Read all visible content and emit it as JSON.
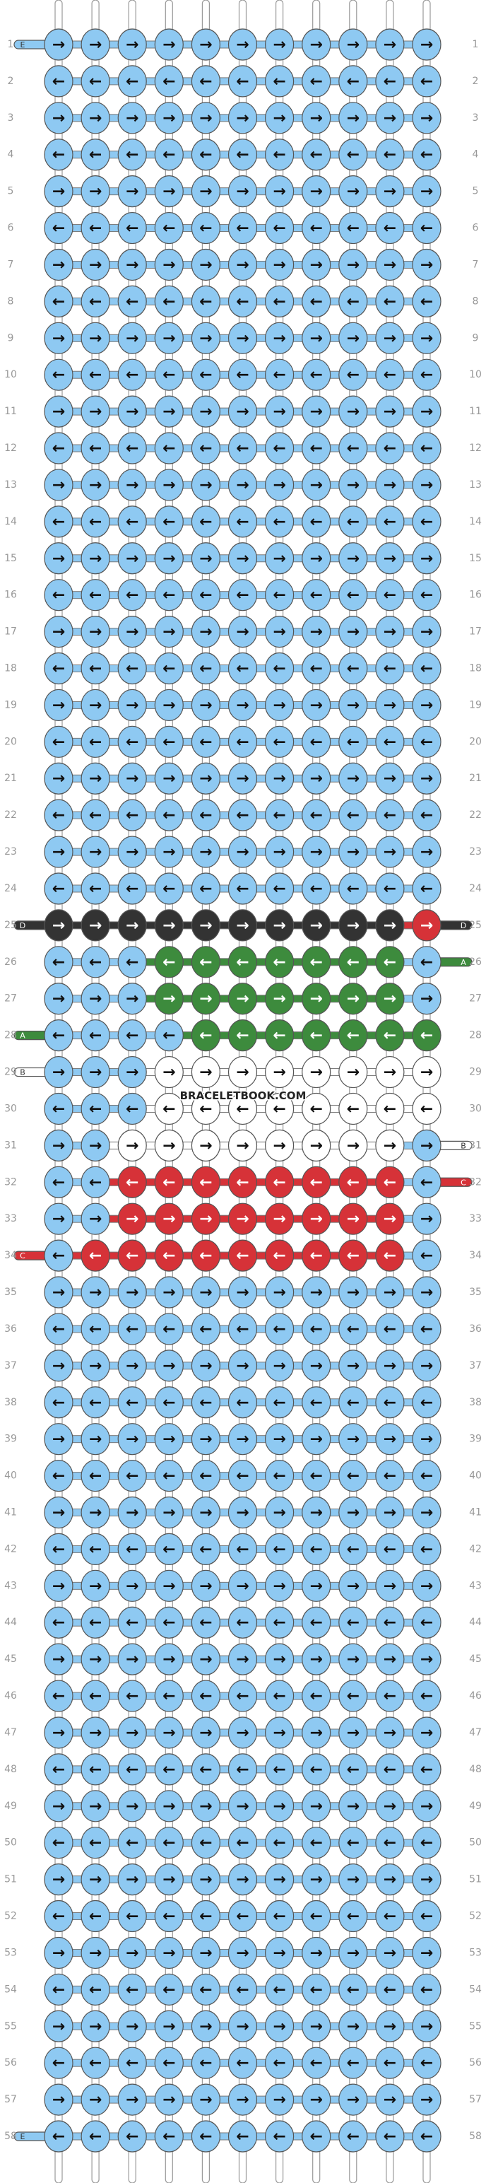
{
  "colors": {
    "E": "#8ec9f2",
    "D": "#333333",
    "A": "#3d8b3d",
    "B": "#ffffff",
    "C": "#d63238"
  },
  "watermark": "BRACELETBOOK.COM",
  "rows": [
    {
      "number": 1,
      "left": "E",
      "arrows": "→→→→→→→→→→→",
      "colors": "EEEEEEEEEEE"
    },
    {
      "number": 2,
      "arrows": "←←←←←←←←←←←",
      "colors": "EEEEEEEEEEE"
    },
    {
      "number": 3,
      "arrows": "→→→→→→→→→→→",
      "colors": "EEEEEEEEEEE"
    },
    {
      "number": 4,
      "arrows": "←←←←←←←←←←←",
      "colors": "EEEEEEEEEEE"
    },
    {
      "number": 5,
      "arrows": "→→→→→→→→→→→",
      "colors": "EEEEEEEEEEE"
    },
    {
      "number": 6,
      "arrows": "←←←←←←←←←←←",
      "colors": "EEEEEEEEEEE"
    },
    {
      "number": 7,
      "arrows": "→→→→→→→→→→→",
      "colors": "EEEEEEEEEEE"
    },
    {
      "number": 8,
      "arrows": "←←←←←←←←←←←",
      "colors": "EEEEEEEEEEE"
    },
    {
      "number": 9,
      "arrows": "→→→→→→→→→→→",
      "colors": "EEEEEEEEEEE"
    },
    {
      "number": 10,
      "arrows": "←←←←←←←←←←←",
      "colors": "EEEEEEEEEEE"
    },
    {
      "number": 11,
      "arrows": "→→→→→→→→→→→",
      "colors": "EEEEEEEEEEE"
    },
    {
      "number": 12,
      "arrows": "←←←←←←←←←←←",
      "colors": "EEEEEEEEEEE"
    },
    {
      "number": 13,
      "arrows": "→→→→→→→→→→→",
      "colors": "EEEEEEEEEEE"
    },
    {
      "number": 14,
      "arrows": "←←←←←←←←←←←",
      "colors": "EEEEEEEEEEE"
    },
    {
      "number": 15,
      "arrows": "→→→→→→→→→→→",
      "colors": "EEEEEEEEEEE"
    },
    {
      "number": 16,
      "arrows": "←←←←←←←←←←←",
      "colors": "EEEEEEEEEEE"
    },
    {
      "number": 17,
      "arrows": "→→→→→→→→→→→",
      "colors": "EEEEEEEEEEE"
    },
    {
      "number": 18,
      "arrows": "←←←←←←←←←←←",
      "colors": "EEEEEEEEEEE"
    },
    {
      "number": 19,
      "arrows": "→→→→→→→→→→→",
      "colors": "EEEEEEEEEEE"
    },
    {
      "number": 20,
      "arrows": "←←←←←←←←←←←",
      "colors": "EEEEEEEEEEE"
    },
    {
      "number": 21,
      "arrows": "→→→→→→→→→→→",
      "colors": "EEEEEEEEEEE"
    },
    {
      "number": 22,
      "arrows": "←←←←←←←←←←←",
      "colors": "EEEEEEEEEEE"
    },
    {
      "number": 23,
      "arrows": "→→→→→→→→→→→",
      "colors": "EEEEEEEEEEE"
    },
    {
      "number": 24,
      "arrows": "←←←←←←←←←←←",
      "colors": "EEEEEEEEEEE"
    },
    {
      "number": 25,
      "left": "D",
      "right": "D",
      "arrows": "→→→→→→→→→→→",
      "colors": "DDDDDDDDDDC"
    },
    {
      "number": 26,
      "right": "A",
      "arrows": "←←←←←←←←←←←",
      "colors": "EEEAAAAAAAE"
    },
    {
      "number": 27,
      "arrows": "→→→→→→→→→→→",
      "colors": "EEEAAAAAAAE"
    },
    {
      "number": 28,
      "left": "A",
      "arrows": "←←←←←←←←←←←",
      "colors": "EEEEAAAAAAA"
    },
    {
      "number": 29,
      "left": "B",
      "arrows": "→→→→→→→→→→→",
      "colors": "EEEBBBBBBBB"
    },
    {
      "number": 30,
      "arrows": "←←←←←←←←←←←",
      "colors": "EEEBBBBBBBB"
    },
    {
      "number": 31,
      "right": "B",
      "arrows": "→→→→→→→→→→→",
      "colors": "EEBBBBBBBBE"
    },
    {
      "number": 32,
      "right": "C",
      "arrows": "←←←←←←←←←←←",
      "colors": "EECCCCCCCCE"
    },
    {
      "number": 33,
      "arrows": "→→→→→→→→→→→",
      "colors": "EECCCCCCCCE"
    },
    {
      "number": 34,
      "left": "C",
      "arrows": "←←←←←←←←←←←",
      "colors": "ECCCCCCCCCE"
    },
    {
      "number": 35,
      "arrows": "→→→→→→→→→→→",
      "colors": "EEEEEEEEEEE"
    },
    {
      "number": 36,
      "arrows": "←←←←←←←←←←←",
      "colors": "EEEEEEEEEEE"
    },
    {
      "number": 37,
      "arrows": "→→→→→→→→→→→",
      "colors": "EEEEEEEEEEE"
    },
    {
      "number": 38,
      "arrows": "←←←←←←←←←←←",
      "colors": "EEEEEEEEEEE"
    },
    {
      "number": 39,
      "arrows": "→→→→→→→→→→→",
      "colors": "EEEEEEEEEEE"
    },
    {
      "number": 40,
      "arrows": "←←←←←←←←←←←",
      "colors": "EEEEEEEEEEE"
    },
    {
      "number": 41,
      "arrows": "→→→→→→→→→→→",
      "colors": "EEEEEEEEEEE"
    },
    {
      "number": 42,
      "arrows": "←←←←←←←←←←←",
      "colors": "EEEEEEEEEEE"
    },
    {
      "number": 43,
      "arrows": "→→→→→→→→→→→",
      "colors": "EEEEEEEEEEE"
    },
    {
      "number": 44,
      "arrows": "←←←←←←←←←←←",
      "colors": "EEEEEEEEEEE"
    },
    {
      "number": 45,
      "arrows": "→→→→→→→→→→→",
      "colors": "EEEEEEEEEEE"
    },
    {
      "number": 46,
      "arrows": "←←←←←←←←←←←",
      "colors": "EEEEEEEEEEE"
    },
    {
      "number": 47,
      "arrows": "→→→→→→→→→→→",
      "colors": "EEEEEEEEEEE"
    },
    {
      "number": 48,
      "arrows": "←←←←←←←←←←←",
      "colors": "EEEEEEEEEEE"
    },
    {
      "number": 49,
      "arrows": "→→→→→→→→→→→",
      "colors": "EEEEEEEEEEE"
    },
    {
      "number": 50,
      "arrows": "←←←←←←←←←←←",
      "colors": "EEEEEEEEEEE"
    },
    {
      "number": 51,
      "arrows": "→→→→→→→→→→→",
      "colors": "EEEEEEEEEEE"
    },
    {
      "number": 52,
      "arrows": "←←←←←←←←←←←",
      "colors": "EEEEEEEEEEE"
    },
    {
      "number": 53,
      "arrows": "→→→→→→→→→→→",
      "colors": "EEEEEEEEEEE"
    },
    {
      "number": 54,
      "arrows": "←←←←←←←←←←←",
      "colors": "EEEEEEEEEEE"
    },
    {
      "number": 55,
      "arrows": "→→→→→→→→→→→",
      "colors": "EEEEEEEEEEE"
    },
    {
      "number": 56,
      "arrows": "←←←←←←←←←←←",
      "colors": "EEEEEEEEEEE"
    },
    {
      "number": 57,
      "arrows": "→→→→→→→→→→→",
      "colors": "EEEEEEEEEEE"
    },
    {
      "number": 58,
      "left": "E",
      "arrows": "←←←←←←←←←←←",
      "colors": "EEEEEEEEEEE"
    }
  ]
}
